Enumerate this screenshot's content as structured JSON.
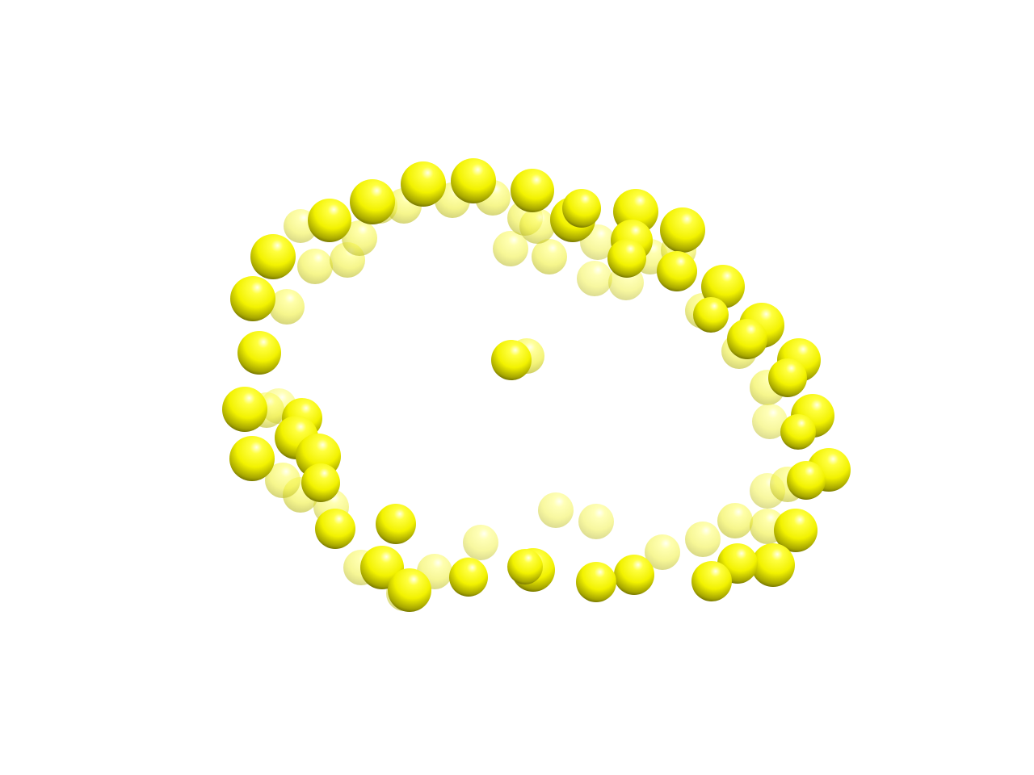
{
  "viewer": {
    "background_color": "#ffffff",
    "representation": "spheres",
    "atom_color": "#ffff00",
    "highlight_color": "#ffffe0",
    "shadow_color": "#5c5c00"
  }
}
